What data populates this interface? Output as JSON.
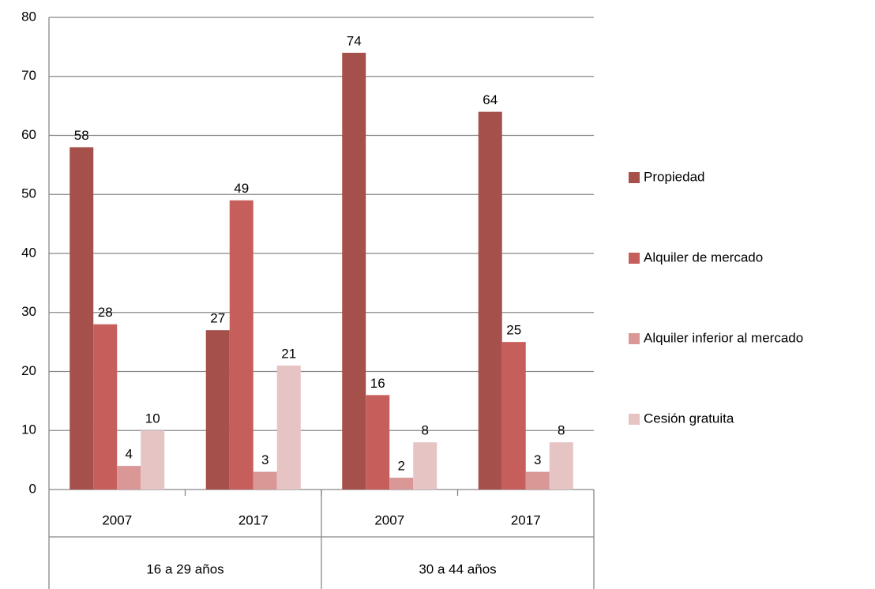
{
  "chart_data": {
    "type": "bar",
    "categories": [
      "2007",
      "2017",
      "2007",
      "2017"
    ],
    "groups": [
      "16 a 29 años",
      "30 a 44 años"
    ],
    "series": [
      {
        "name": "Propiedad",
        "color": "#a5504a",
        "values": [
          58,
          27,
          74,
          64
        ]
      },
      {
        "name": "Alquiler de mercado",
        "color": "#c65f5c",
        "values": [
          28,
          49,
          16,
          25
        ]
      },
      {
        "name": "Alquiler inferior al mercado",
        "color": "#d99795",
        "values": [
          4,
          3,
          2,
          3
        ]
      },
      {
        "name": "Cesión gratuita",
        "color": "#e6c4c3",
        "values": [
          10,
          21,
          8,
          8
        ]
      }
    ],
    "ylim": [
      0,
      80
    ],
    "yticks": [
      0,
      10,
      20,
      30,
      40,
      50,
      60,
      70,
      80
    ],
    "grid": true,
    "legend": "right"
  }
}
